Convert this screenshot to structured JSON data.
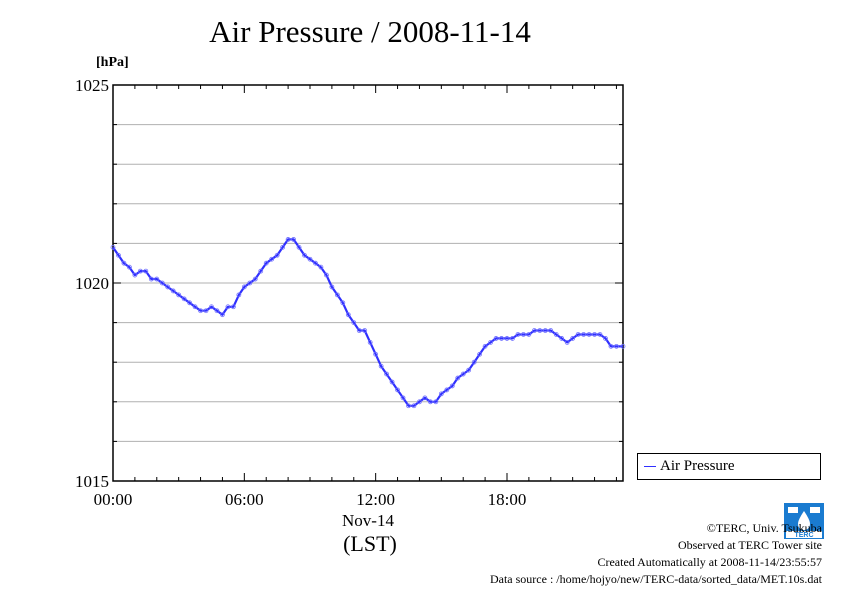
{
  "title": "Air Pressure / 2008-11-14",
  "unit_label": "[hPa]",
  "x_date_label": "Nov-14",
  "x_tz_label": "(LST)",
  "legend_label": "Air Pressure",
  "footer": {
    "copyright": "©TERC, Univ. Tsukuba",
    "observed": "Observed at TERC Tower site",
    "created": "Created Automatically at 2008-11-14/23:55:57",
    "source": "Data source : /home/hojyo/new/TERC-data/sorted_data/MET.10s.dat"
  },
  "logo_text": "TERC",
  "colors": {
    "series": "#3030ff",
    "grid": "#b0b0b0",
    "logo": "#1a7bd0"
  },
  "chart_data": {
    "type": "line",
    "title": "Air Pressure / 2008-11-14",
    "xlabel": "Nov-14 (LST)",
    "ylabel": "[hPa]",
    "xlim": [
      0,
      23.3
    ],
    "ylim": [
      1015,
      1025
    ],
    "x_ticks": [
      0,
      6,
      12,
      18
    ],
    "x_tick_labels": [
      "00:00",
      "06:00",
      "12:00",
      "18:00"
    ],
    "y_ticks": [
      1015,
      1020,
      1025
    ],
    "y_tick_labels": [
      "1015",
      "1020",
      "1025"
    ],
    "grid": true,
    "legend": "right",
    "series": [
      {
        "name": "Air Pressure",
        "x": [
          0,
          0.25,
          0.5,
          0.75,
          1.0,
          1.25,
          1.5,
          1.75,
          2.0,
          2.25,
          2.5,
          2.75,
          3.0,
          3.25,
          3.5,
          3.75,
          4.0,
          4.25,
          4.5,
          4.75,
          5.0,
          5.25,
          5.5,
          5.75,
          6.0,
          6.25,
          6.5,
          6.75,
          7.0,
          7.25,
          7.5,
          7.75,
          8.0,
          8.25,
          8.5,
          8.75,
          9.0,
          9.25,
          9.5,
          9.75,
          10.0,
          10.25,
          10.5,
          10.75,
          11.0,
          11.25,
          11.5,
          11.75,
          12.0,
          12.25,
          12.5,
          12.75,
          13.0,
          13.25,
          13.5,
          13.75,
          14.0,
          14.25,
          14.5,
          14.75,
          15.0,
          15.25,
          15.5,
          15.75,
          16.0,
          16.25,
          16.5,
          16.75,
          17.0,
          17.25,
          17.5,
          17.75,
          18.0,
          18.25,
          18.5,
          18.75,
          19.0,
          19.25,
          19.5,
          19.75,
          20.0,
          20.25,
          20.5,
          20.75,
          21.0,
          21.25,
          21.5,
          21.75,
          22.0,
          22.25,
          22.5,
          22.75,
          23.0,
          23.3
        ],
        "values": [
          1020.9,
          1020.7,
          1020.5,
          1020.4,
          1020.2,
          1020.3,
          1020.3,
          1020.1,
          1020.1,
          1020.0,
          1019.9,
          1019.8,
          1019.7,
          1019.6,
          1019.5,
          1019.4,
          1019.3,
          1019.3,
          1019.4,
          1019.3,
          1019.2,
          1019.4,
          1019.4,
          1019.7,
          1019.9,
          1020.0,
          1020.1,
          1020.3,
          1020.5,
          1020.6,
          1020.7,
          1020.9,
          1021.1,
          1021.1,
          1020.9,
          1020.7,
          1020.6,
          1020.5,
          1020.4,
          1020.2,
          1019.9,
          1019.7,
          1019.5,
          1019.2,
          1019.0,
          1018.8,
          1018.8,
          1018.5,
          1018.2,
          1017.9,
          1017.7,
          1017.5,
          1017.3,
          1017.1,
          1016.9,
          1016.9,
          1017.0,
          1017.1,
          1017.0,
          1017.0,
          1017.2,
          1017.3,
          1017.4,
          1017.6,
          1017.7,
          1017.8,
          1018.0,
          1018.2,
          1018.4,
          1018.5,
          1018.6,
          1018.6,
          1018.6,
          1018.6,
          1018.7,
          1018.7,
          1018.7,
          1018.8,
          1018.8,
          1018.8,
          1018.8,
          1018.7,
          1018.6,
          1018.5,
          1018.6,
          1018.7,
          1018.7,
          1018.7,
          1018.7,
          1018.7,
          1018.6,
          1018.4,
          1018.4,
          1018.4
        ]
      }
    ]
  }
}
